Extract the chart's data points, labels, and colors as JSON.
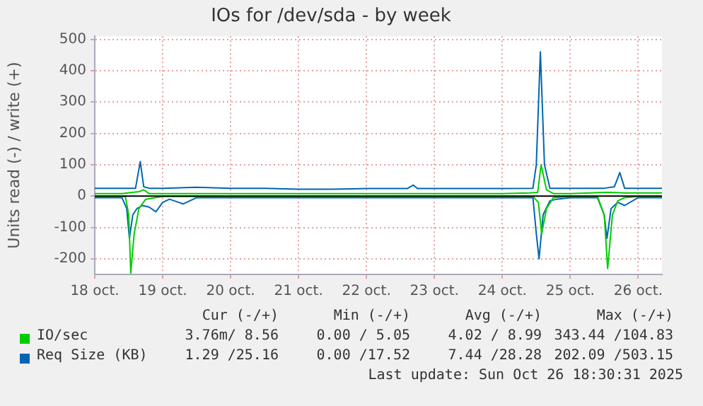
{
  "chart_data": {
    "type": "line",
    "title": "IOs for /dev/sda - by week",
    "ylabel": "Units read (-) / write (+)",
    "xlim": [
      "2025-10-18",
      "2025-10-26T08:24"
    ],
    "xticks": [
      {
        "value": "2025-10-18",
        "label": "18 oct."
      },
      {
        "value": "2025-10-19",
        "label": "19 oct."
      },
      {
        "value": "2025-10-20",
        "label": "20 oct."
      },
      {
        "value": "2025-10-21",
        "label": "21 oct."
      },
      {
        "value": "2025-10-22",
        "label": "22 oct."
      },
      {
        "value": "2025-10-23",
        "label": "23 oct."
      },
      {
        "value": "2025-10-24",
        "label": "24 oct."
      },
      {
        "value": "2025-10-25",
        "label": "25 oct."
      },
      {
        "value": "2025-10-26",
        "label": "26 oct."
      }
    ],
    "ylim": [
      -250,
      510
    ],
    "yticks": [
      -200,
      -100,
      0,
      100,
      200,
      300,
      400,
      500
    ],
    "grid": true,
    "legend": "bottom",
    "marker": "none",
    "line_style": "solid",
    "ref_lines": [
      {
        "axis": "y",
        "value": 0,
        "color": "#000000"
      }
    ],
    "series": [
      {
        "name": "IO/sec",
        "color": "#00cc00",
        "x": [
          "2025-10-18T00:00",
          "2025-10-18T09:36",
          "2025-10-18T13:12",
          "2025-10-18T15:36",
          "2025-10-18T17:17",
          "2025-10-18T19:12",
          "2025-10-19T00:00",
          "2025-10-19T12:00",
          "2025-10-20T00:00",
          "2025-10-20T12:00",
          "2025-10-21T00:00",
          "2025-10-21T12:00",
          "2025-10-22T00:00",
          "2025-10-22T12:00",
          "2025-10-23T00:00",
          "2025-10-23T12:00",
          "2025-10-24T00:00",
          "2025-10-24T09:36",
          "2025-10-24T12:29",
          "2025-10-24T13:41",
          "2025-10-24T15:36",
          "2025-10-24T18:00",
          "2025-10-25T00:00",
          "2025-10-25T07:12",
          "2025-10-25T12:00",
          "2025-10-25T14:24",
          "2025-10-25T19:12",
          "2025-10-26T00:00",
          "2025-10-26T08:24"
        ],
        "values": [
          8,
          8,
          12,
          14,
          20,
          8,
          8,
          8,
          8,
          8,
          8,
          8,
          8,
          8,
          8,
          8,
          8,
          10,
          12,
          100,
          20,
          8,
          8,
          10,
          12,
          12,
          10,
          10,
          10
        ]
      },
      {
        "color": "#00cc00",
        "x": [
          "2025-10-18T00:00",
          "2025-10-18T10:48",
          "2025-10-18T12:00",
          "2025-10-18T12:43",
          "2025-10-18T13:55",
          "2025-10-18T15:36",
          "2025-10-18T18:00",
          "2025-10-19T00:00",
          "2025-10-19T12:00",
          "2025-10-20T00:00",
          "2025-10-21T00:00",
          "2025-10-22T00:00",
          "2025-10-23T00:00",
          "2025-10-24T00:00",
          "2025-10-24T10:48",
          "2025-10-24T12:43",
          "2025-10-24T13:55",
          "2025-10-24T15:36",
          "2025-10-24T18:00",
          "2025-10-25T00:00",
          "2025-10-25T09:36",
          "2025-10-25T12:00",
          "2025-10-25T13:12",
          "2025-10-25T14:53",
          "2025-10-25T16:48",
          "2025-10-25T19:12",
          "2025-10-26T00:00",
          "2025-10-26T08:24"
        ],
        "values": [
          -1,
          -1,
          -60,
          -246,
          -120,
          -40,
          -10,
          -1,
          -1,
          -1,
          -1,
          -1,
          -1,
          -1,
          -1,
          -20,
          -120,
          -40,
          -5,
          -1,
          -1,
          -60,
          -231,
          -60,
          -15,
          -5,
          -1,
          -1
        ]
      },
      {
        "name": "Req Size (KB)",
        "color": "#0066b3",
        "x": [
          "2025-10-18T00:00",
          "2025-10-18T09:36",
          "2025-10-18T14:24",
          "2025-10-18T16:05",
          "2025-10-18T17:17",
          "2025-10-18T19:12",
          "2025-10-19T00:00",
          "2025-10-19T12:00",
          "2025-10-20T00:00",
          "2025-10-20T12:00",
          "2025-10-21T00:00",
          "2025-10-21T12:00",
          "2025-10-22T00:00",
          "2025-10-22T14:24",
          "2025-10-22T16:34",
          "2025-10-22T18:00",
          "2025-10-23T00:00",
          "2025-10-23T12:00",
          "2025-10-24T00:00",
          "2025-10-24T10:48",
          "2025-10-24T12:00",
          "2025-10-24T13:26",
          "2025-10-24T14:53",
          "2025-10-24T16:48",
          "2025-10-25T00:00",
          "2025-10-25T12:00",
          "2025-10-25T15:36",
          "2025-10-25T17:31",
          "2025-10-25T19:12",
          "2025-10-26T00:00",
          "2025-10-26T08:24"
        ],
        "values": [
          25,
          25,
          25,
          110,
          30,
          25,
          25,
          28,
          25,
          25,
          22,
          22,
          24,
          24,
          35,
          24,
          24,
          24,
          24,
          25,
          100,
          460,
          100,
          25,
          25,
          25,
          30,
          75,
          25,
          25,
          25
        ]
      },
      {
        "color": "#0066b3",
        "x": [
          "2025-10-18T00:00",
          "2025-10-18T09:36",
          "2025-10-18T11:17",
          "2025-10-18T12:14",
          "2025-10-18T13:26",
          "2025-10-18T14:53",
          "2025-10-18T16:48",
          "2025-10-18T19:12",
          "2025-10-18T21:36",
          "2025-10-19T00:00",
          "2025-10-19T02:24",
          "2025-10-19T07:12",
          "2025-10-19T12:00",
          "2025-10-20T00:00",
          "2025-10-21T00:00",
          "2025-10-22T00:00",
          "2025-10-23T00:00",
          "2025-10-24T00:00",
          "2025-10-24T10:48",
          "2025-10-24T12:00",
          "2025-10-24T12:58",
          "2025-10-24T14:24",
          "2025-10-24T16:48",
          "2025-10-24T19:12",
          "2025-10-25T00:00",
          "2025-10-25T09:36",
          "2025-10-25T12:00",
          "2025-10-25T12:58",
          "2025-10-25T14:24",
          "2025-10-25T16:48",
          "2025-10-25T19:12",
          "2025-10-26T00:00",
          "2025-10-26T08:24"
        ],
        "values": [
          -5,
          -5,
          -40,
          -135,
          -60,
          -40,
          -30,
          -35,
          -50,
          -20,
          -10,
          -25,
          -5,
          -5,
          -5,
          -5,
          -5,
          -5,
          -5,
          -120,
          -200,
          -60,
          -15,
          -10,
          -5,
          -5,
          -60,
          -135,
          -40,
          -20,
          -30,
          -5,
          -5
        ]
      }
    ],
    "annotations": [
      "Cur (-/+)",
      "Min (-/+)",
      "Avg (-/+)",
      "Max (-/+)",
      "3.76m/ 8.56",
      "0.00 / 5.05",
      "4.02 / 8.99",
      "343.44 /104.83",
      "1.29 /25.16",
      "0.00 /17.52",
      "7.44 /28.28",
      "202.09 /503.15",
      "Last update: Sun Oct 26 18:30:31 2025"
    ]
  }
}
